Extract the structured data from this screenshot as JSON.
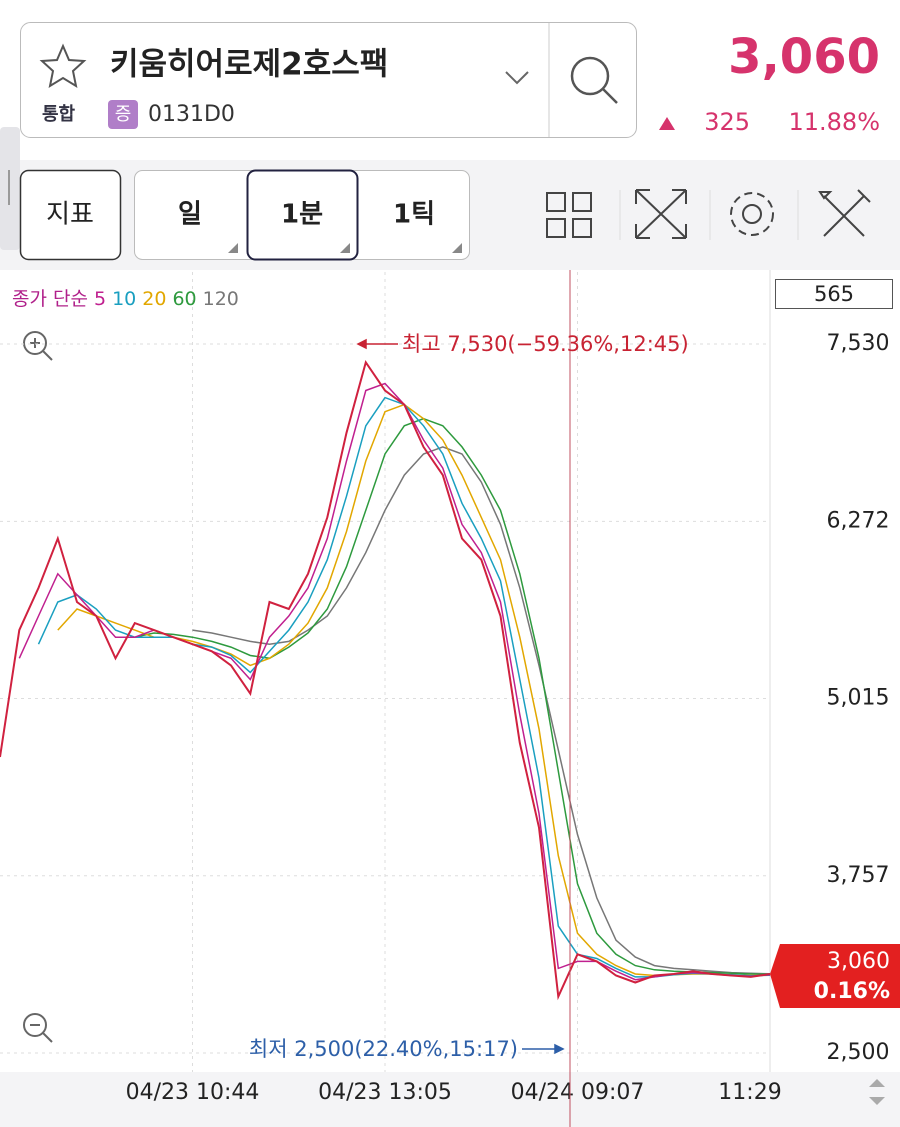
{
  "header": {
    "name": "키움히어로제2호스팩",
    "market": "통합",
    "badge": "증",
    "code": "0131D0",
    "price": "3,060",
    "change": "325",
    "change_pct": "11.88%"
  },
  "toolbar": {
    "indicator": "지표",
    "periods": [
      "일",
      "1분",
      "1틱"
    ]
  },
  "chart_data": {
    "type": "line",
    "legend_title": "종가 단순",
    "categories": [
      null,
      null,
      null,
      null,
      null,
      null,
      null,
      null,
      null,
      null,
      "04/23 10:44",
      null,
      null,
      null,
      null,
      null,
      null,
      null,
      null,
      null,
      "04/23 13:05",
      null,
      null,
      null,
      null,
      null,
      null,
      null,
      null,
      null,
      "04/24 09:07",
      null,
      null,
      null,
      null,
      null,
      null,
      null,
      null,
      null,
      "11:29"
    ],
    "values": [
      4600,
      5500,
      5800,
      6150,
      5700,
      5600,
      5300,
      5550,
      5500,
      5450,
      5400,
      5350,
      5250,
      5050,
      5700,
      5650,
      5900,
      6300,
      6900,
      7400,
      7200,
      7100,
      6800,
      6600,
      6150,
      6000,
      5600,
      4700,
      4100,
      2900,
      3200,
      3150,
      3050,
      3000,
      3050,
      3060,
      3080,
      3060,
      3050,
      3040,
      3060
    ],
    "color": "#d0213f",
    "series": [
      {
        "name": "5",
        "color": "#c0208f",
        "values": [
          null,
          5300,
          5600,
          5900,
          5750,
          5600,
          5450,
          5450,
          5500,
          5450,
          5400,
          5350,
          5300,
          5150,
          5450,
          5600,
          5800,
          6150,
          6700,
          7200,
          7250,
          7100,
          6850,
          6650,
          6250,
          6050,
          5700,
          4900,
          4200,
          3100,
          3150,
          3150,
          3080,
          3020,
          3040,
          3060,
          3070,
          3060,
          3050,
          3045,
          3055
        ]
      },
      {
        "name": "10",
        "color": "#1a9fc0",
        "values": [
          null,
          null,
          5400,
          5700,
          5750,
          5650,
          5500,
          5450,
          5450,
          5450,
          5400,
          5380,
          5320,
          5200,
          5350,
          5500,
          5700,
          6000,
          6450,
          6950,
          7150,
          7100,
          6950,
          6750,
          6400,
          6150,
          5850,
          5150,
          4450,
          3400,
          3200,
          3170,
          3100,
          3040,
          3040,
          3055,
          3065,
          3060,
          3055,
          3048,
          3052
        ]
      },
      {
        "name": "20",
        "color": "#e2a700",
        "values": [
          null,
          null,
          null,
          5500,
          5650,
          5600,
          5550,
          5500,
          5450,
          5450,
          5420,
          5380,
          5330,
          5250,
          5300,
          5400,
          5550,
          5800,
          6200,
          6700,
          7050,
          7100,
          7000,
          6850,
          6600,
          6300,
          6000,
          5450,
          4800,
          3900,
          3350,
          3200,
          3120,
          3060,
          3050,
          3055,
          3060,
          3060,
          3055,
          3050,
          3052
        ]
      },
      {
        "name": "60",
        "color": "#2e9a3e",
        "values": [
          null,
          null,
          null,
          null,
          null,
          null,
          null,
          5450,
          5480,
          5470,
          5450,
          5420,
          5380,
          5320,
          5300,
          5380,
          5480,
          5650,
          5950,
          6350,
          6750,
          6950,
          7000,
          6950,
          6800,
          6600,
          6350,
          5900,
          5300,
          4500,
          3700,
          3350,
          3200,
          3120,
          3090,
          3080,
          3075,
          3070,
          3065,
          3060,
          3058
        ]
      },
      {
        "name": "120",
        "color": "#777777",
        "values": [
          null,
          null,
          null,
          null,
          null,
          null,
          null,
          null,
          null,
          null,
          5500,
          5480,
          5450,
          5420,
          5400,
          5420,
          5500,
          5600,
          5800,
          6050,
          6350,
          6600,
          6750,
          6800,
          6750,
          6550,
          6250,
          5800,
          5250,
          4650,
          4050,
          3600,
          3300,
          3180,
          3120,
          3100,
          3090,
          3080,
          3070,
          3065,
          3062
        ]
      }
    ],
    "ylim": [
      2365,
      8041
    ],
    "yticks": [
      {
        "value": 2500,
        "label": "2,500"
      },
      {
        "value": 3757,
        "label": "3,757"
      },
      {
        "value": 5015,
        "label": "5,015"
      },
      {
        "value": 6272,
        "label": "6,272"
      },
      {
        "value": 7530,
        "label": "7,530"
      }
    ],
    "grid": true,
    "high": {
      "value": 7530,
      "label": "최고 7,530(−59.36%,12:45)"
    },
    "low": {
      "value": 2500,
      "label": "최저 2,500(22.40%,15:17)"
    },
    "crosshair_label": "565",
    "last_price": {
      "value": 3060,
      "label": "3,060"
    },
    "last_change": "0.16%"
  }
}
